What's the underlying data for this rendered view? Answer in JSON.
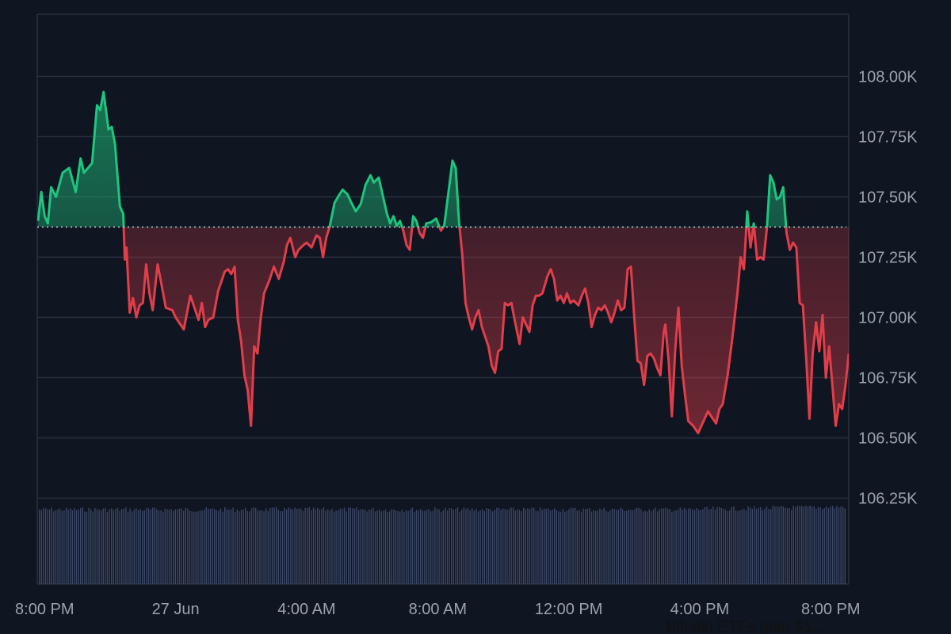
{
  "colors": {
    "background": "#0f1521",
    "grid": "#2a313d",
    "up": "#1fc47e",
    "down": "#e23e4a",
    "baseline": "#c8ccd2",
    "axis_text": "#9aa3b0",
    "volume": "#3a4766"
  },
  "news": {
    "headline": "Bitcoin ETFs gain $1..."
  },
  "chart_data": {
    "type": "area",
    "baseline": 107375,
    "ylim": [
      106050,
      108250
    ],
    "y_ticks": [
      108000,
      107750,
      107500,
      107250,
      107000,
      106750,
      106500,
      106250
    ],
    "y_tick_labels": [
      "108.00K",
      "107.75K",
      "107.50K",
      "107.25K",
      "107.00K",
      "106.75K",
      "106.50K",
      "106.25K"
    ],
    "x_range_hours": [
      -0.2,
      24.55
    ],
    "x_tick_hours": [
      0,
      4,
      8,
      12,
      16,
      20,
      24
    ],
    "x_tick_labels": [
      "8:00 PM",
      "27 Jun",
      "4:00 AM",
      "8:00 AM",
      "12:00 PM",
      "4:00 PM",
      "8:00 PM"
    ],
    "grid": true,
    "legend": "none",
    "price_points": [
      [
        -0.2,
        107400
      ],
      [
        -0.1,
        107520
      ],
      [
        0.0,
        107420
      ],
      [
        0.1,
        107390
      ],
      [
        0.2,
        107540
      ],
      [
        0.35,
        107500
      ],
      [
        0.55,
        107600
      ],
      [
        0.75,
        107620
      ],
      [
        0.95,
        107520
      ],
      [
        1.1,
        107660
      ],
      [
        1.2,
        107600
      ],
      [
        1.45,
        107640
      ],
      [
        1.6,
        107880
      ],
      [
        1.7,
        107860
      ],
      [
        1.8,
        107935
      ],
      [
        1.95,
        107780
      ],
      [
        2.05,
        107790
      ],
      [
        2.15,
        107720
      ],
      [
        2.3,
        107460
      ],
      [
        2.4,
        107430
      ],
      [
        2.45,
        107240
      ],
      [
        2.5,
        107290
      ],
      [
        2.6,
        107020
      ],
      [
        2.7,
        107080
      ],
      [
        2.8,
        107000
      ],
      [
        2.9,
        107050
      ],
      [
        3.0,
        107060
      ],
      [
        3.1,
        107220
      ],
      [
        3.2,
        107100
      ],
      [
        3.3,
        107030
      ],
      [
        3.45,
        107220
      ],
      [
        3.55,
        107150
      ],
      [
        3.7,
        107040
      ],
      [
        3.9,
        107030
      ],
      [
        4.0,
        107000
      ],
      [
        4.15,
        106970
      ],
      [
        4.25,
        106950
      ],
      [
        4.45,
        107090
      ],
      [
        4.6,
        107030
      ],
      [
        4.7,
        106990
      ],
      [
        4.8,
        107060
      ],
      [
        4.9,
        106960
      ],
      [
        5.0,
        106990
      ],
      [
        5.15,
        107000
      ],
      [
        5.3,
        107110
      ],
      [
        5.5,
        107190
      ],
      [
        5.6,
        107200
      ],
      [
        5.7,
        107180
      ],
      [
        5.8,
        107210
      ],
      [
        5.9,
        106990
      ],
      [
        6.0,
        106900
      ],
      [
        6.1,
        106760
      ],
      [
        6.2,
        106700
      ],
      [
        6.3,
        106550
      ],
      [
        6.4,
        106880
      ],
      [
        6.5,
        106850
      ],
      [
        6.6,
        107000
      ],
      [
        6.7,
        107100
      ],
      [
        6.85,
        107150
      ],
      [
        7.0,
        107210
      ],
      [
        7.15,
        107160
      ],
      [
        7.3,
        107230
      ],
      [
        7.4,
        107300
      ],
      [
        7.5,
        107330
      ],
      [
        7.65,
        107250
      ],
      [
        7.75,
        107280
      ],
      [
        7.9,
        107300
      ],
      [
        8.0,
        107310
      ],
      [
        8.15,
        107290
      ],
      [
        8.3,
        107340
      ],
      [
        8.4,
        107330
      ],
      [
        8.5,
        107250
      ],
      [
        8.6,
        107330
      ],
      [
        8.7,
        107375
      ],
      [
        8.85,
        107475
      ],
      [
        9.0,
        107510
      ],
      [
        9.1,
        107530
      ],
      [
        9.25,
        107510
      ],
      [
        9.35,
        107480
      ],
      [
        9.5,
        107440
      ],
      [
        9.65,
        107470
      ],
      [
        9.8,
        107550
      ],
      [
        9.95,
        107590
      ],
      [
        10.05,
        107560
      ],
      [
        10.2,
        107580
      ],
      [
        10.3,
        107520
      ],
      [
        10.45,
        107430
      ],
      [
        10.55,
        107390
      ],
      [
        10.65,
        107420
      ],
      [
        10.75,
        107380
      ],
      [
        10.85,
        107400
      ],
      [
        10.95,
        107360
      ],
      [
        11.05,
        107300
      ],
      [
        11.15,
        107280
      ],
      [
        11.25,
        107420
      ],
      [
        11.35,
        107400
      ],
      [
        11.45,
        107350
      ],
      [
        11.55,
        107330
      ],
      [
        11.65,
        107390
      ],
      [
        11.8,
        107395
      ],
      [
        11.95,
        107410
      ],
      [
        12.1,
        107360
      ],
      [
        12.2,
        107380
      ],
      [
        12.35,
        107540
      ],
      [
        12.45,
        107650
      ],
      [
        12.55,
        107620
      ],
      [
        12.65,
        107400
      ],
      [
        12.75,
        107260
      ],
      [
        12.85,
        107060
      ],
      [
        12.95,
        107000
      ],
      [
        13.05,
        106950
      ],
      [
        13.15,
        107000
      ],
      [
        13.25,
        107030
      ],
      [
        13.35,
        106960
      ],
      [
        13.45,
        106920
      ],
      [
        13.55,
        106880
      ],
      [
        13.65,
        106800
      ],
      [
        13.75,
        106770
      ],
      [
        13.85,
        106860
      ],
      [
        13.95,
        106870
      ],
      [
        14.05,
        107060
      ],
      [
        14.15,
        107050
      ],
      [
        14.25,
        107060
      ],
      [
        14.35,
        106990
      ],
      [
        14.5,
        106890
      ],
      [
        14.6,
        107000
      ],
      [
        14.7,
        106970
      ],
      [
        14.8,
        106940
      ],
      [
        14.9,
        107050
      ],
      [
        15.0,
        107090
      ],
      [
        15.1,
        107090
      ],
      [
        15.2,
        107100
      ],
      [
        15.35,
        107170
      ],
      [
        15.45,
        107200
      ],
      [
        15.55,
        107160
      ],
      [
        15.65,
        107070
      ],
      [
        15.75,
        107090
      ],
      [
        15.85,
        107060
      ],
      [
        15.95,
        107100
      ],
      [
        16.05,
        107060
      ],
      [
        16.15,
        107070
      ],
      [
        16.3,
        107050
      ],
      [
        16.4,
        107090
      ],
      [
        16.5,
        107120
      ],
      [
        16.6,
        107060
      ],
      [
        16.7,
        106960
      ],
      [
        16.8,
        107010
      ],
      [
        16.9,
        107040
      ],
      [
        17.0,
        107030
      ],
      [
        17.1,
        107050
      ],
      [
        17.2,
        107020
      ],
      [
        17.3,
        106980
      ],
      [
        17.4,
        107020
      ],
      [
        17.5,
        107070
      ],
      [
        17.6,
        107030
      ],
      [
        17.7,
        107040
      ],
      [
        17.8,
        107200
      ],
      [
        17.9,
        107210
      ],
      [
        18.0,
        107000
      ],
      [
        18.1,
        106820
      ],
      [
        18.2,
        106810
      ],
      [
        18.3,
        106720
      ],
      [
        18.4,
        106840
      ],
      [
        18.5,
        106850
      ],
      [
        18.6,
        106830
      ],
      [
        18.7,
        106790
      ],
      [
        18.8,
        106760
      ],
      [
        18.9,
        106940
      ],
      [
        18.95,
        106970
      ],
      [
        19.05,
        106820
      ],
      [
        19.15,
        106590
      ],
      [
        19.25,
        106860
      ],
      [
        19.35,
        107040
      ],
      [
        19.45,
        106800
      ],
      [
        19.55,
        106680
      ],
      [
        19.65,
        106570
      ],
      [
        19.8,
        106550
      ],
      [
        19.95,
        106520
      ],
      [
        20.05,
        106550
      ],
      [
        20.15,
        106580
      ],
      [
        20.25,
        106610
      ],
      [
        20.4,
        106580
      ],
      [
        20.5,
        106560
      ],
      [
        20.6,
        106620
      ],
      [
        20.7,
        106640
      ],
      [
        20.85,
        106760
      ],
      [
        21.0,
        106920
      ],
      [
        21.15,
        107100
      ],
      [
        21.25,
        107250
      ],
      [
        21.35,
        107200
      ],
      [
        21.45,
        107440
      ],
      [
        21.55,
        107290
      ],
      [
        21.65,
        107390
      ],
      [
        21.75,
        107240
      ],
      [
        21.85,
        107250
      ],
      [
        21.95,
        107240
      ],
      [
        22.05,
        107370
      ],
      [
        22.15,
        107590
      ],
      [
        22.25,
        107560
      ],
      [
        22.35,
        107490
      ],
      [
        22.45,
        107500
      ],
      [
        22.55,
        107540
      ],
      [
        22.65,
        107350
      ],
      [
        22.75,
        107280
      ],
      [
        22.85,
        107310
      ],
      [
        22.95,
        107290
      ],
      [
        23.05,
        107060
      ],
      [
        23.15,
        107050
      ],
      [
        23.25,
        106830
      ],
      [
        23.35,
        106580
      ],
      [
        23.45,
        106850
      ],
      [
        23.55,
        106980
      ],
      [
        23.65,
        106860
      ],
      [
        23.75,
        107010
      ],
      [
        23.85,
        106750
      ],
      [
        23.95,
        106880
      ],
      [
        24.05,
        106720
      ],
      [
        24.15,
        106550
      ],
      [
        24.25,
        106640
      ],
      [
        24.35,
        106620
      ],
      [
        24.45,
        106720
      ],
      [
        24.55,
        106850
      ]
    ]
  }
}
